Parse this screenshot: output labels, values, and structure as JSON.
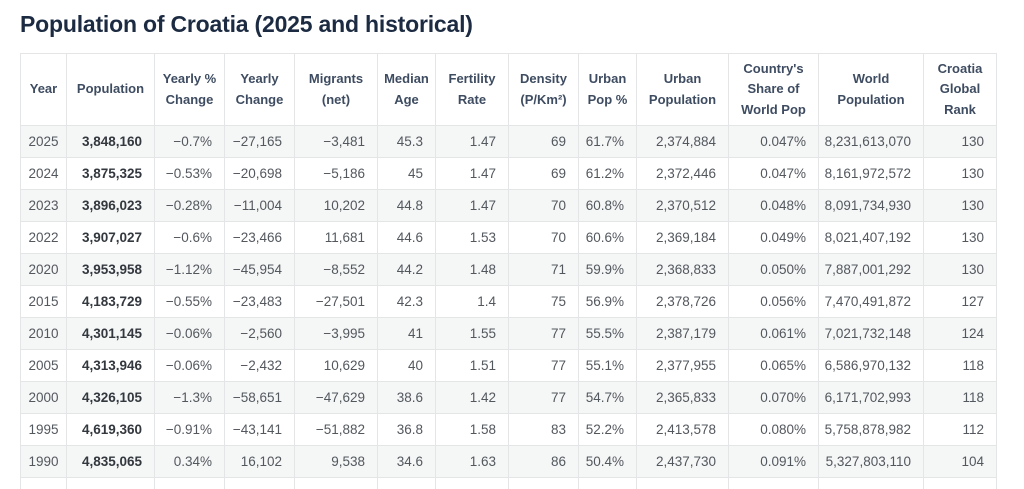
{
  "page": {
    "title": "Population of Croatia (2025 and historical)"
  },
  "colors": {
    "title_text": "#1c2b42",
    "header_text": "#3e4c61",
    "body_text": "#53585e",
    "bold_text": "#33383e",
    "row_stripe": "#f5f6f6",
    "border": "#e3e5e6"
  },
  "table": {
    "columns": [
      {
        "label": "Year"
      },
      {
        "label": "Population"
      },
      {
        "label": "Yearly %\nChange"
      },
      {
        "label": "Yearly\nChange"
      },
      {
        "label": "Migrants\n(net)"
      },
      {
        "label": "Median\nAge"
      },
      {
        "label": "Fertility\nRate"
      },
      {
        "label": "Density\n(P/Km²)"
      },
      {
        "label": "Urban\nPop %"
      },
      {
        "label": "Urban\nPopulation"
      },
      {
        "label": "Country's\nShare of\nWorld Pop"
      },
      {
        "label": "World\nPopulation"
      },
      {
        "label": "Croatia\nGlobal\nRank"
      }
    ],
    "rows": [
      [
        "2025",
        "3,848,160",
        "−0.7%",
        "−27,165",
        "−3,481",
        "45.3",
        "1.47",
        "69",
        "61.7%",
        "2,374,884",
        "0.047%",
        "8,231,613,070",
        "130"
      ],
      [
        "2024",
        "3,875,325",
        "−0.53%",
        "−20,698",
        "−5,186",
        "45",
        "1.47",
        "69",
        "61.2%",
        "2,372,446",
        "0.047%",
        "8,161,972,572",
        "130"
      ],
      [
        "2023",
        "3,896,023",
        "−0.28%",
        "−11,004",
        "10,202",
        "44.8",
        "1.47",
        "70",
        "60.8%",
        "2,370,512",
        "0.048%",
        "8,091,734,930",
        "130"
      ],
      [
        "2022",
        "3,907,027",
        "−0.6%",
        "−23,466",
        "11,681",
        "44.6",
        "1.53",
        "70",
        "60.6%",
        "2,369,184",
        "0.049%",
        "8,021,407,192",
        "130"
      ],
      [
        "2020",
        "3,953,958",
        "−1.12%",
        "−45,954",
        "−8,552",
        "44.2",
        "1.48",
        "71",
        "59.9%",
        "2,368,833",
        "0.050%",
        "7,887,001,292",
        "130"
      ],
      [
        "2015",
        "4,183,729",
        "−0.55%",
        "−23,483",
        "−27,501",
        "42.3",
        "1.4",
        "75",
        "56.9%",
        "2,378,726",
        "0.056%",
        "7,470,491,872",
        "127"
      ],
      [
        "2010",
        "4,301,145",
        "−0.06%",
        "−2,560",
        "−3,995",
        "41",
        "1.55",
        "77",
        "55.5%",
        "2,387,179",
        "0.061%",
        "7,021,732,148",
        "124"
      ],
      [
        "2005",
        "4,313,946",
        "−0.06%",
        "−2,432",
        "10,629",
        "40",
        "1.51",
        "77",
        "55.1%",
        "2,377,955",
        "0.065%",
        "6,586,970,132",
        "118"
      ],
      [
        "2000",
        "4,326,105",
        "−1.3%",
        "−58,651",
        "−47,629",
        "38.6",
        "1.42",
        "77",
        "54.7%",
        "2,365,833",
        "0.070%",
        "6,171,702,993",
        "118"
      ],
      [
        "1995",
        "4,619,360",
        "−0.91%",
        "−43,141",
        "−51,882",
        "36.8",
        "1.58",
        "83",
        "52.2%",
        "2,413,578",
        "0.080%",
        "5,758,878,982",
        "112"
      ],
      [
        "1990",
        "4,835,065",
        "0.34%",
        "16,102",
        "9,538",
        "34.6",
        "1.63",
        "86",
        "50.4%",
        "2,437,730",
        "0.091%",
        "5,327,803,110",
        "104"
      ]
    ]
  }
}
